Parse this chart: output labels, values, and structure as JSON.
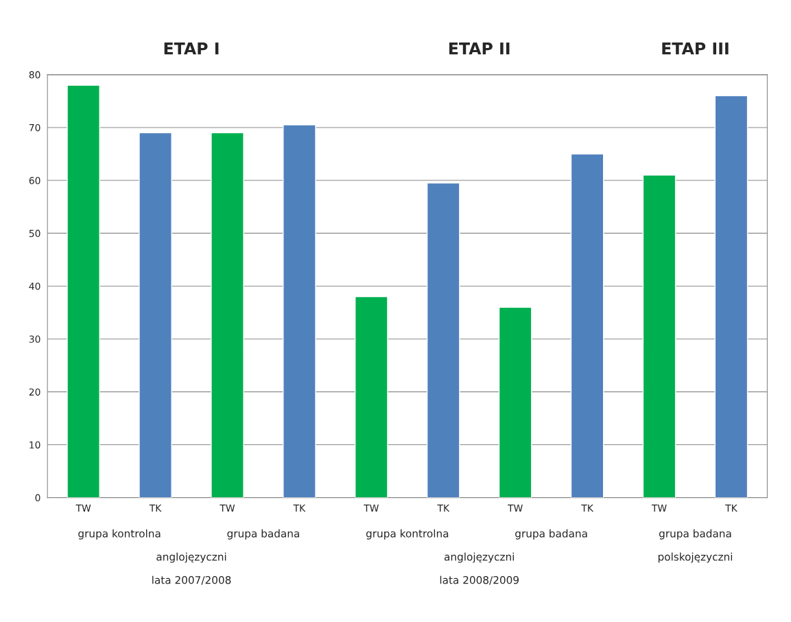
{
  "chart_data": {
    "type": "bar",
    "categories": [
      "TW",
      "TK",
      "TW",
      "TK",
      "TW",
      "TK",
      "TW",
      "TK",
      "TW",
      "TK"
    ],
    "values": [
      78,
      69,
      69,
      70.5,
      38,
      59.5,
      36,
      65,
      61,
      76
    ],
    "colors": [
      "#00b050",
      "#4f81bd",
      "#00b050",
      "#4f81bd",
      "#00b050",
      "#4f81bd",
      "#00b050",
      "#4f81bd",
      "#00b050",
      "#4f81bd"
    ],
    "ylim": [
      0,
      80
    ],
    "yticks": [
      0,
      10,
      20,
      30,
      40,
      50,
      60,
      70,
      80
    ],
    "grid": "y",
    "legend": false,
    "annotations": [
      "ETAP I",
      "ETAP II",
      "ETAP III",
      "grupa kontrolna",
      "grupa badana",
      "grupa kontrolna",
      "grupa badana",
      "grupa badana",
      "anglojęzyczni",
      "anglojęzyczni",
      "polskojęzyczni",
      "lata 2007/2008",
      "lata 2008/2009"
    ]
  }
}
